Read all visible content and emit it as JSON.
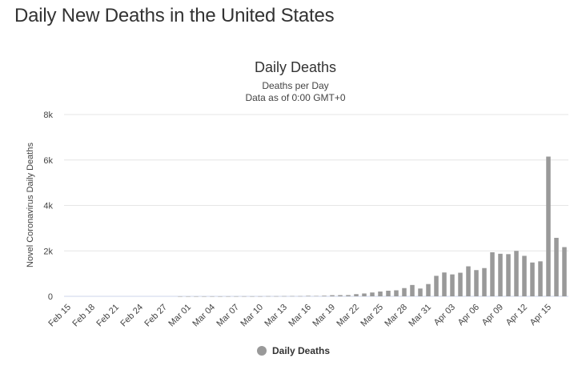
{
  "page": {
    "title": "Daily New Deaths in the United States"
  },
  "chart_data": {
    "type": "bar",
    "title": "Daily Deaths",
    "subtitles": [
      "Deaths per Day",
      "Data as of 0:00 GMT+0"
    ],
    "xlabel": "",
    "ylabel": "Novel Coronavirus Daily Deaths",
    "ylim": [
      0,
      8000
    ],
    "yticks": [
      {
        "value": 0,
        "label": "0"
      },
      {
        "value": 2000,
        "label": "2k"
      },
      {
        "value": 4000,
        "label": "4k"
      },
      {
        "value": 6000,
        "label": "6k"
      },
      {
        "value": 8000,
        "label": "8k"
      }
    ],
    "tick_labels": [
      "Feb 15",
      "Feb 18",
      "Feb 21",
      "Feb 24",
      "Feb 27",
      "Mar 01",
      "Mar 04",
      "Mar 07",
      "Mar 10",
      "Mar 13",
      "Mar 16",
      "Mar 19",
      "Mar 22",
      "Mar 25",
      "Mar 28",
      "Mar 31",
      "Apr 03",
      "Apr 06",
      "Apr 09",
      "Apr 12",
      "Apr 15"
    ],
    "categories": [
      "Feb 15",
      "Feb 16",
      "Feb 17",
      "Feb 18",
      "Feb 19",
      "Feb 20",
      "Feb 21",
      "Feb 22",
      "Feb 23",
      "Feb 24",
      "Feb 25",
      "Feb 26",
      "Feb 27",
      "Feb 28",
      "Feb 29",
      "Mar 01",
      "Mar 02",
      "Mar 03",
      "Mar 04",
      "Mar 05",
      "Mar 06",
      "Mar 07",
      "Mar 08",
      "Mar 09",
      "Mar 10",
      "Mar 11",
      "Mar 12",
      "Mar 13",
      "Mar 14",
      "Mar 15",
      "Mar 16",
      "Mar 17",
      "Mar 18",
      "Mar 19",
      "Mar 20",
      "Mar 21",
      "Mar 22",
      "Mar 23",
      "Mar 24",
      "Mar 25",
      "Mar 26",
      "Mar 27",
      "Mar 28",
      "Mar 29",
      "Mar 30",
      "Mar 31",
      "Apr 01",
      "Apr 02",
      "Apr 03",
      "Apr 04",
      "Apr 05",
      "Apr 06",
      "Apr 07",
      "Apr 08",
      "Apr 09",
      "Apr 10",
      "Apr 11",
      "Apr 12",
      "Apr 13",
      "Apr 14",
      "Apr 15",
      "Apr 16",
      "Apr 17"
    ],
    "series": [
      {
        "name": "Daily Deaths",
        "color": "#999999",
        "values": [
          0,
          0,
          0,
          0,
          0,
          0,
          0,
          0,
          0,
          0,
          0,
          0,
          0,
          0,
          1,
          1,
          1,
          1,
          2,
          1,
          2,
          3,
          4,
          3,
          4,
          8,
          7,
          10,
          12,
          11,
          23,
          17,
          27,
          49,
          52,
          54,
          96,
          125,
          168,
          212,
          247,
          265,
          362,
          499,
          343,
          540,
          902,
          1049,
          964,
          1038,
          1320,
          1154,
          1243,
          1939,
          1873,
          1856,
          2000,
          1781,
          1488,
          1539,
          6149,
          2574,
          2165
        ]
      }
    ],
    "legend": {
      "position": "bottom-center",
      "label": "Daily Deaths"
    },
    "grid": true
  }
}
